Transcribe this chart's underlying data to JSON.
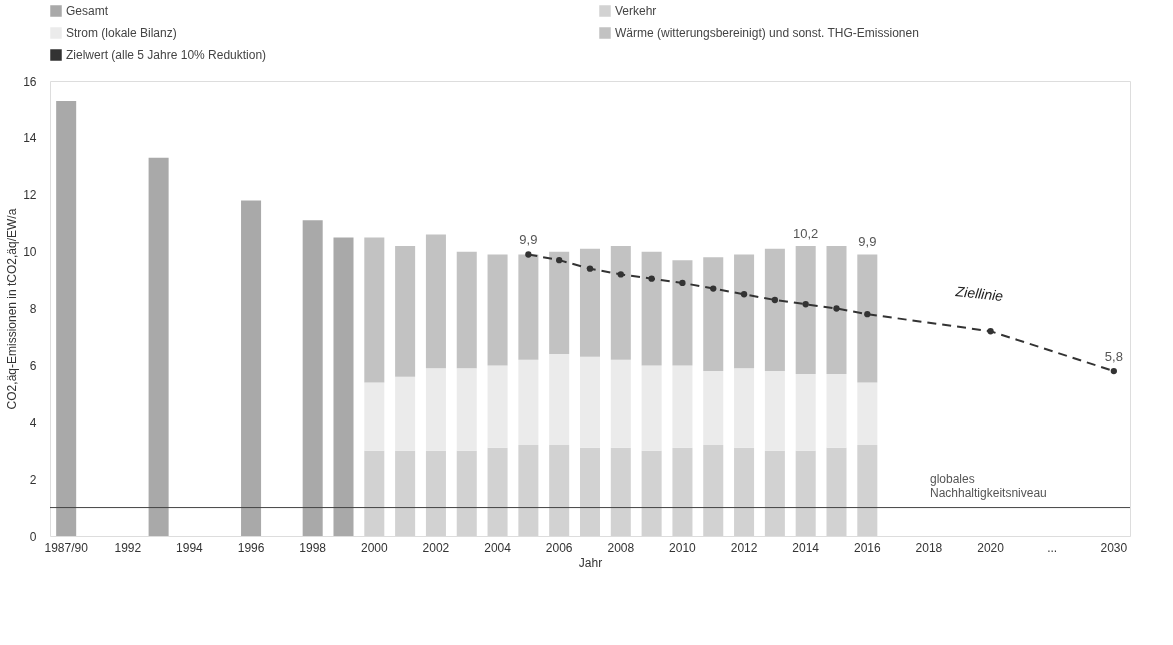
{
  "chart_data": {
    "type": "bar",
    "stacked": true,
    "xlabel": "Jahr",
    "ylabel": "CO2,äq-Emissionen in tCO2,äq/EW/a",
    "categories": [
      "1987/90",
      null,
      "1992",
      null,
      "1994",
      null,
      "1996",
      null,
      "1998",
      null,
      "2000",
      null,
      "2002",
      null,
      "2004",
      null,
      "2006",
      null,
      "2008",
      null,
      "2010",
      null,
      "2012",
      null,
      "2014",
      null,
      "2016",
      null,
      "2018",
      null,
      "2020",
      null,
      "...",
      null,
      "2030"
    ],
    "series": [
      {
        "name": "Gesamt",
        "color": "#a9a9a9",
        "values": [
          15.3,
          null,
          null,
          13.3,
          null,
          null,
          11.8,
          null,
          11.1,
          10.5,
          null,
          null,
          null,
          null,
          null,
          null,
          null,
          null,
          null,
          null,
          null,
          null,
          null,
          null,
          null,
          null,
          null,
          null,
          null,
          null,
          null,
          null,
          null,
          null,
          null
        ]
      },
      {
        "name": "Verkehr",
        "color": "#d2d2d2",
        "values": [
          null,
          null,
          null,
          null,
          null,
          null,
          null,
          null,
          null,
          null,
          3.0,
          3.0,
          3.0,
          3.0,
          3.1,
          3.2,
          3.2,
          3.1,
          3.1,
          3.0,
          3.1,
          3.2,
          3.1,
          3.0,
          3.0,
          3.1,
          3.2,
          null,
          null,
          null,
          null,
          null,
          null,
          null,
          null
        ]
      },
      {
        "name": "Strom (lokale Bilanz)",
        "color": "#ebebeb",
        "values": [
          null,
          null,
          null,
          null,
          null,
          null,
          null,
          null,
          null,
          null,
          2.4,
          2.6,
          2.9,
          2.9,
          2.9,
          3.0,
          3.2,
          3.2,
          3.1,
          3.0,
          2.9,
          2.6,
          2.8,
          2.8,
          2.7,
          2.6,
          2.2,
          null,
          null,
          null,
          null,
          null,
          null,
          null,
          null
        ]
      },
      {
        "name": "Wärme (witterungsbereinigt) und sonst. THG-Emissionen",
        "color": "#c2c2c2",
        "values": [
          null,
          null,
          null,
          null,
          null,
          null,
          null,
          null,
          null,
          null,
          5.1,
          4.6,
          4.7,
          4.1,
          3.9,
          3.7,
          3.6,
          3.8,
          4.0,
          4.0,
          3.7,
          4.0,
          4.0,
          4.3,
          4.5,
          4.5,
          4.5,
          null,
          null,
          null,
          null,
          null,
          null,
          null,
          null
        ]
      },
      {
        "name": "Zielwert (alle 5 Jahre 10% Reduktion)",
        "type": "line",
        "color": "#333333",
        "line_style": "dashed",
        "marker": "circle",
        "values": [
          null,
          null,
          null,
          null,
          null,
          null,
          null,
          null,
          null,
          null,
          null,
          null,
          null,
          null,
          null,
          9.9,
          9.7,
          9.4,
          9.2,
          9.05,
          8.9,
          8.7,
          8.5,
          8.3,
          8.15,
          8.0,
          7.8,
          null,
          null,
          null,
          7.2,
          null,
          null,
          null,
          5.8
        ],
        "value_labels": [
          null,
          null,
          null,
          null,
          null,
          null,
          null,
          null,
          null,
          null,
          null,
          null,
          null,
          null,
          null,
          "9,9",
          null,
          null,
          null,
          null,
          null,
          null,
          null,
          null,
          null,
          null,
          null,
          null,
          null,
          null,
          null,
          null,
          null,
          null,
          "5,8"
        ]
      }
    ],
    "totals": [
      null,
      null,
      null,
      null,
      null,
      null,
      null,
      null,
      null,
      null,
      null,
      null,
      null,
      null,
      null,
      null,
      null,
      null,
      null,
      null,
      null,
      null,
      null,
      null,
      "10,2",
      null,
      "9,9",
      null,
      null,
      null,
      null,
      null,
      null,
      null,
      null
    ],
    "ylim": [
      0,
      16
    ],
    "yticks": [
      0,
      2,
      4,
      6,
      8,
      10,
      12,
      14,
      16
    ],
    "ref_lines": [
      {
        "axis": "y",
        "value": 1.0,
        "label": "globales\nNachhaltigkeitsniveau",
        "color": "#444444"
      }
    ],
    "annotations": [
      "Ziellinie"
    ],
    "legend": "top",
    "grid": false
  }
}
